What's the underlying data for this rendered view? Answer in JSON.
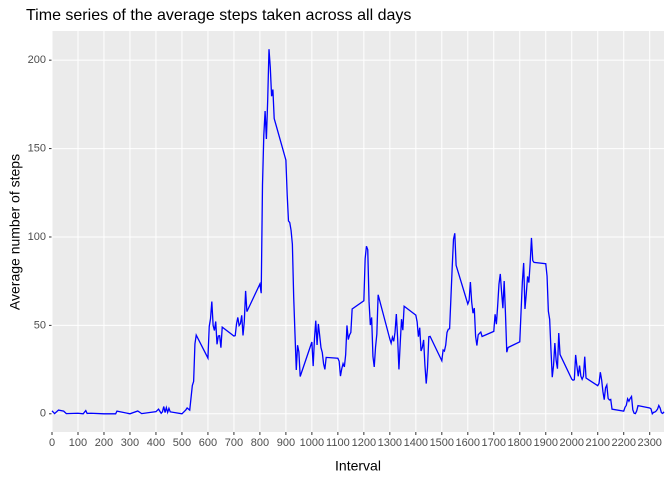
{
  "chart_data": {
    "type": "line",
    "title": "Time series of the average steps taken across all days",
    "x_label": "Interval",
    "y_label": "Average number of steps",
    "color": "#0000ff",
    "grid": true,
    "xlim": [
      0,
      2355
    ],
    "ylim": [
      -10.3,
      216.5
    ],
    "xticks": [
      0,
      100,
      200,
      300,
      400,
      500,
      600,
      700,
      800,
      900,
      1000,
      1100,
      1200,
      1300,
      1400,
      1500,
      1600,
      1700,
      1800,
      1900,
      2000,
      2100,
      2200,
      2300
    ],
    "yticks": [
      0,
      50,
      100,
      150,
      200
    ],
    "x": [
      0,
      10,
      25,
      45,
      55,
      100,
      120,
      130,
      135,
      150,
      200,
      230,
      245,
      250,
      300,
      330,
      345,
      400,
      410,
      420,
      425,
      430,
      435,
      440,
      445,
      450,
      455,
      500,
      515,
      520,
      530,
      540,
      545,
      550,
      555,
      600,
      605,
      610,
      615,
      620,
      625,
      630,
      635,
      640,
      645,
      650,
      655,
      700,
      705,
      710,
      715,
      720,
      725,
      730,
      735,
      740,
      745,
      750,
      800,
      805,
      810,
      815,
      820,
      825,
      830,
      835,
      840,
      845,
      850,
      855,
      900,
      905,
      910,
      915,
      920,
      925,
      930,
      935,
      940,
      945,
      950,
      955,
      1000,
      1005,
      1010,
      1015,
      1020,
      1025,
      1030,
      1035,
      1040,
      1045,
      1050,
      1055,
      1100,
      1105,
      1110,
      1115,
      1120,
      1125,
      1130,
      1135,
      1140,
      1145,
      1150,
      1155,
      1200,
      1205,
      1210,
      1215,
      1220,
      1225,
      1230,
      1235,
      1240,
      1245,
      1250,
      1255,
      1300,
      1305,
      1310,
      1315,
      1320,
      1325,
      1330,
      1335,
      1340,
      1345,
      1350,
      1355,
      1400,
      1405,
      1410,
      1415,
      1420,
      1425,
      1430,
      1435,
      1440,
      1445,
      1450,
      1455,
      1500,
      1505,
      1510,
      1515,
      1520,
      1525,
      1530,
      1535,
      1540,
      1545,
      1550,
      1555,
      1600,
      1605,
      1610,
      1615,
      1620,
      1625,
      1630,
      1635,
      1640,
      1645,
      1650,
      1655,
      1700,
      1705,
      1710,
      1715,
      1720,
      1725,
      1730,
      1735,
      1740,
      1745,
      1750,
      1755,
      1800,
      1805,
      1810,
      1815,
      1820,
      1825,
      1830,
      1835,
      1840,
      1845,
      1850,
      1855,
      1900,
      1905,
      1910,
      1915,
      1920,
      1925,
      1930,
      1935,
      1940,
      1945,
      1950,
      1955,
      2000,
      2005,
      2010,
      2015,
      2020,
      2025,
      2030,
      2035,
      2040,
      2045,
      2050,
      2055,
      2100,
      2105,
      2110,
      2115,
      2120,
      2125,
      2130,
      2135,
      2140,
      2145,
      2150,
      2155,
      2200,
      2205,
      2210,
      2215,
      2220,
      2225,
      2230,
      2235,
      2240,
      2245,
      2250,
      2255,
      2300,
      2305,
      2310,
      2315,
      2320,
      2325,
      2330,
      2335,
      2340,
      2345,
      2350,
      2355
    ],
    "values": [
      1.7,
      0.1,
      2.1,
      1.5,
      0.1,
      0.3,
      0,
      1.8,
      0.2,
      0.3,
      0,
      0,
      0,
      1.5,
      0,
      1.6,
      0.1,
      1.2,
      2.6,
      0.3,
      1.1,
      4.1,
      0.7,
      3.5,
      0.8,
      3.1,
      1.1,
      0,
      2.2,
      3.3,
      2.1,
      16,
      18.3,
      39.5,
      44.5,
      31.5,
      49.3,
      53.8,
      63.5,
      50,
      47.1,
      52.2,
      39.3,
      44,
      44.2,
      37.4,
      49,
      44,
      44.2,
      50.8,
      54.5,
      49.9,
      51,
      55.7,
      44.3,
      52.3,
      69.5,
      57.8,
      73.4,
      68.2,
      129.4,
      157.5,
      171.2,
      155.4,
      177.3,
      206.2,
      195.9,
      179.6,
      183.4,
      167,
      143.5,
      124,
      109.1,
      108.1,
      103.7,
      95.9,
      66.2,
      45.2,
      24.8,
      38.8,
      35,
      21.1,
      40.6,
      27,
      42.4,
      52.7,
      38.9,
      50.8,
      44.3,
      37.4,
      34.7,
      28.3,
      25.1,
      31.9,
      31.4,
      29.7,
      21.3,
      25.5,
      28.4,
      26.5,
      33.4,
      50,
      42,
      44.6,
      46,
      59.3,
      63.9,
      87.7,
      94.8,
      92.8,
      63.4,
      50.2,
      54.5,
      32.4,
      26.5,
      37.7,
      45.1,
      67.3,
      42.3,
      39.9,
      43.3,
      41,
      46.2,
      56.4,
      42.8,
      25.1,
      40,
      53.5,
      47.3,
      60.8,
      55.8,
      52,
      43.6,
      48.7,
      35.5,
      37.5,
      41.8,
      27.5,
      17.1,
      26.1,
      43.6,
      43.8,
      30,
      36.1,
      35.5,
      38.8,
      46,
      47.8,
      48.1,
      65.3,
      82.9,
      98.7,
      102.1,
      84,
      62.1,
      64.1,
      74.5,
      63.2,
      56.9,
      59.8,
      43.9,
      38.6,
      44.7,
      45.5,
      46.2,
      43.7,
      46.6,
      56.3,
      50.7,
      61.2,
      73.4,
      79.1,
      68.9,
      59.7,
      75.1,
      56.5,
      34.8,
      37.5,
      40.7,
      58,
      74.7,
      85.3,
      59.3,
      67.8,
      77.7,
      74.2,
      85.3,
      99.5,
      86.6,
      85.6,
      84.9,
      77.8,
      58,
      53.4,
      36.3,
      20.7,
      27.4,
      40,
      30.2,
      25.5,
      45.7,
      33.5,
      19.6,
      19,
      19.3,
      33.3,
      26.8,
      21.2,
      27.3,
      21.3,
      19.5,
      21.3,
      32.3,
      20.2,
      15.9,
      17.2,
      23.5,
      19.2,
      12.5,
      8,
      14.7,
      16.3,
      8.7,
      7.8,
      8.1,
      2.6,
      1.5,
      3.7,
      4.8,
      8.5,
      7.1,
      8.7,
      9.8,
      2.2,
      0.3,
      0.1,
      1.6,
      4.6,
      3.3,
      2.8,
      0,
      0.8,
      1,
      1.6,
      2.6,
      4.7,
      3.3,
      0.6,
      0.2,
      1.1
    ]
  }
}
